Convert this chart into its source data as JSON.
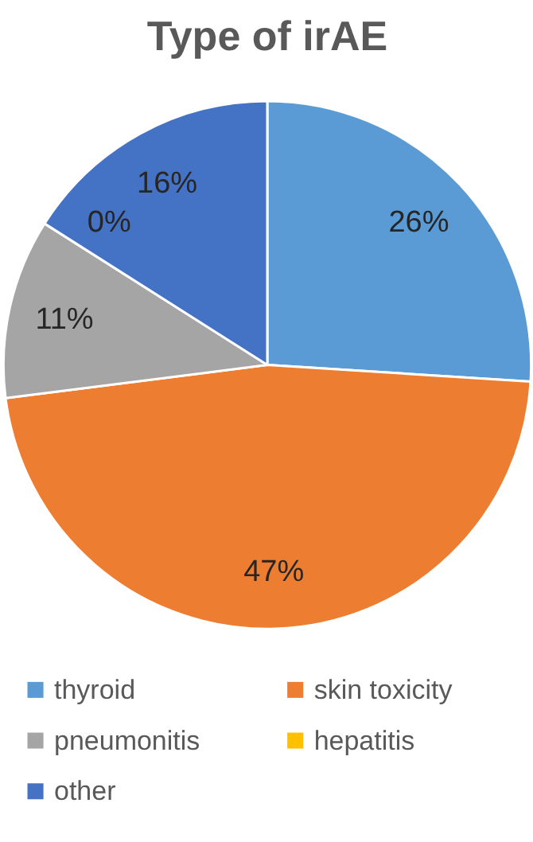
{
  "chart_data": {
    "type": "pie",
    "title": "Type of irAE",
    "categories": [
      "thyroid",
      "skin toxicity",
      "pneumonitis",
      "hepatitis",
      "other"
    ],
    "values": [
      26,
      47,
      11,
      0,
      16
    ],
    "colors": [
      "#5b9bd5",
      "#ed7d31",
      "#a5a5a5",
      "#ffc000",
      "#4472c4"
    ],
    "value_labels": [
      "26%",
      "47%",
      "11%",
      "0%",
      "16%"
    ],
    "legend": "bottom"
  }
}
